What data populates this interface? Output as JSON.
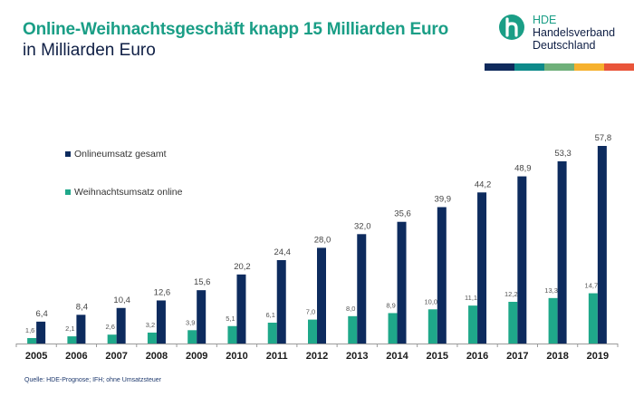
{
  "header": {
    "title": "Online-Weihnachtsgeschäft knapp 15 Milliarden Euro",
    "subtitle": "in Milliarden Euro"
  },
  "logo": {
    "icon": "hde-logo-icon",
    "line1": "HDE",
    "line2": "Handelsverband",
    "line3": "Deutschland",
    "stripe_colors": [
      "#0f2a5c",
      "#0e8a8a",
      "#6fb07a",
      "#f6b12e",
      "#e9553a"
    ]
  },
  "colors": {
    "title": "#1a9e86",
    "total": "#0d2b5e",
    "christmas": "#1fa88a"
  },
  "source": "Quelle: HDE-Prognose; IFH; ohne Umsatzsteuer",
  "chart_data": {
    "type": "bar",
    "title": "Online-Weihnachtsgeschäft knapp 15 Milliarden Euro",
    "subtitle": "in Milliarden Euro",
    "xlabel": "",
    "ylabel": "Milliarden Euro",
    "ylim": [
      0,
      60
    ],
    "grid": false,
    "legend_position": "top-left",
    "categories": [
      "2005",
      "2006",
      "2007",
      "2008",
      "2009",
      "2010",
      "2011",
      "2012",
      "2013",
      "2014",
      "2015",
      "2016",
      "2017",
      "2018",
      "2019"
    ],
    "series": [
      {
        "name": "Weihnachtsumsatz online",
        "color": "#1fa88a",
        "values": [
          1.6,
          2.1,
          2.6,
          3.2,
          3.9,
          5.1,
          6.1,
          7.0,
          8.0,
          8.9,
          10.0,
          11.1,
          12.2,
          13.3,
          14.7
        ],
        "labels": [
          "1,6",
          "2,1",
          "2,6",
          "3,2",
          "3,9",
          "5,1",
          "6,1",
          "7,0",
          "8,0",
          "8,9",
          "10,0",
          "11,1",
          "12,2",
          "13,3",
          "14,7"
        ]
      },
      {
        "name": "Onlineumsatz gesamt",
        "color": "#0d2b5e",
        "values": [
          6.4,
          8.4,
          10.4,
          12.6,
          15.6,
          20.2,
          24.4,
          28.0,
          32.0,
          35.6,
          39.9,
          44.2,
          48.9,
          53.3,
          57.8
        ],
        "labels": [
          "6,4",
          "8,4",
          "10,4",
          "12,6",
          "15,6",
          "20,2",
          "24,4",
          "28,0",
          "32,0",
          "35,6",
          "39,9",
          "44,2",
          "48,9",
          "53,3",
          "57,8"
        ]
      }
    ],
    "legend": [
      "Onlineumsatz gesamt",
      "Weihnachtsumsatz online"
    ]
  }
}
